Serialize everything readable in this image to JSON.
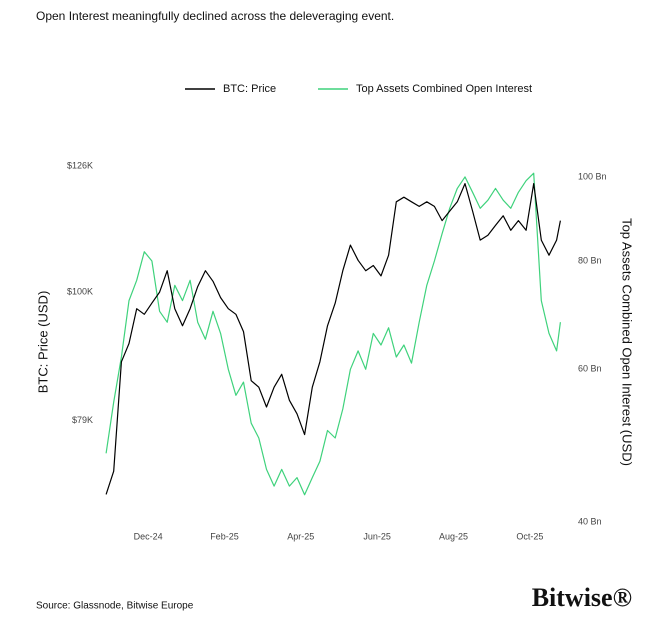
{
  "chart_data": {
    "type": "line",
    "title": "Open Interest meaningfully declined across the deleveraging event.",
    "source": "Source: Glassnode, Bitwise Europe",
    "logo": "Bitwise®",
    "y_label": "BTC: Price (USD)",
    "y2_label": "Top Assets Combined Open Interest (USD)",
    "x": [
      -1.1,
      -0.9,
      -0.7,
      -0.5,
      -0.3,
      -0.1,
      0.1,
      0.3,
      0.5,
      0.7,
      0.9,
      1.1,
      1.3,
      1.5,
      1.7,
      1.9,
      2.1,
      2.3,
      2.5,
      2.7,
      2.9,
      3.1,
      3.3,
      3.5,
      3.7,
      3.9,
      4.1,
      4.3,
      4.5,
      4.7,
      4.9,
      5.1,
      5.3,
      5.5,
      5.7,
      5.9,
      6.1,
      6.3,
      6.5,
      6.7,
      6.9,
      7.1,
      7.3,
      7.5,
      7.7,
      7.9,
      8.1,
      8.3,
      8.5,
      8.7,
      8.9,
      9.1,
      9.3,
      9.5,
      9.7,
      9.9,
      10.1,
      10.3,
      10.5,
      10.7,
      10.8
    ],
    "xlim": [
      -1.26,
      10.92
    ],
    "xticks": [
      {
        "value": 0,
        "label": "Dec-24"
      },
      {
        "value": 2,
        "label": "Feb-25"
      },
      {
        "value": 4,
        "label": "Apr-25"
      },
      {
        "value": 6,
        "label": "Jun-25"
      },
      {
        "value": 8,
        "label": "Aug-25"
      },
      {
        "value": 10,
        "label": "Oct-25"
      }
    ],
    "ylim": [
      65600,
      127400
    ],
    "ylog": true,
    "yticks": [
      {
        "value": 79000,
        "label": "$79K"
      },
      {
        "value": 100000,
        "label": "$100K"
      },
      {
        "value": 126000,
        "label": "$126K"
      }
    ],
    "y2lim": [
      40,
      104.6
    ],
    "y2log": true,
    "y2ticks": [
      {
        "value": 40,
        "label": "40 Bn"
      },
      {
        "value": 60,
        "label": "60 Bn"
      },
      {
        "value": 80,
        "label": "80 Bn"
      },
      {
        "value": 100,
        "label": "100 Bn"
      }
    ],
    "legend": "top",
    "series": [
      {
        "name": "BTC: Price",
        "color": "#000000",
        "values": [
          69000,
          72000,
          88000,
          91000,
          97000,
          96000,
          98000,
          100000,
          104000,
          97000,
          94000,
          97000,
          101000,
          104000,
          102000,
          99000,
          97000,
          96000,
          93000,
          85000,
          84000,
          81000,
          84000,
          86000,
          82000,
          80000,
          77000,
          84000,
          88000,
          94000,
          98000,
          104000,
          109000,
          106000,
          104000,
          105000,
          103000,
          107000,
          118000,
          119000,
          118000,
          117000,
          118000,
          117000,
          114000,
          116000,
          118000,
          122000,
          116000,
          110000,
          111000,
          113000,
          115000,
          112000,
          114000,
          112000,
          122000,
          110000,
          107000,
          110000,
          114000
        ]
      },
      {
        "name": "Top Assets Combined Open Interest",
        "color": "#3fd27c",
        "axis": "y2",
        "values": [
          48,
          55,
          62,
          72,
          76,
          82,
          80,
          70,
          68,
          75,
          72,
          76,
          68,
          65,
          70,
          66,
          60,
          56,
          58,
          52,
          50,
          46,
          44,
          46,
          44,
          45,
          43,
          45,
          47,
          51,
          50,
          54,
          60,
          63,
          60,
          66,
          64,
          67,
          62,
          64,
          61,
          68,
          75,
          80,
          86,
          92,
          97,
          100,
          96,
          92,
          94,
          97,
          94,
          92,
          96,
          99,
          101,
          72,
          66,
          63,
          68
        ]
      }
    ]
  }
}
